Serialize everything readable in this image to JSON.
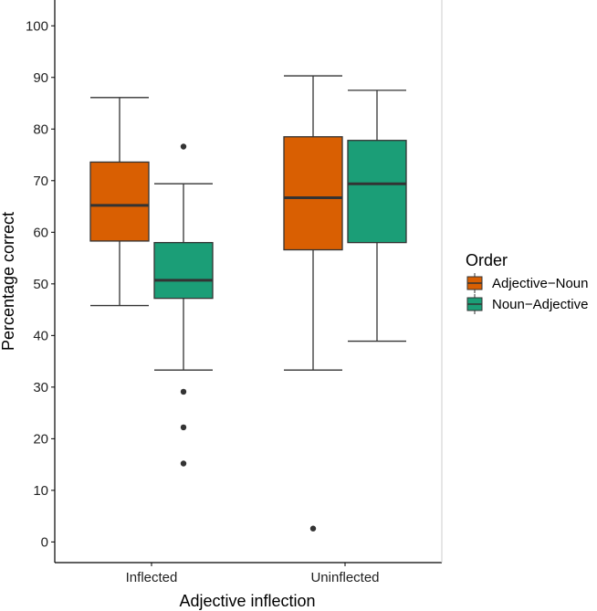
{
  "chart_data": {
    "type": "boxplot",
    "title": "",
    "xlabel": "Adjective inflection",
    "ylabel": "Percentage correct",
    "ylim": [
      -4,
      105
    ],
    "yticks": [
      "0",
      "10",
      "20",
      "30",
      "40",
      "50",
      "60",
      "70",
      "80",
      "90",
      "100"
    ],
    "categories": [
      "Inflected",
      "Uninflected"
    ],
    "legend": {
      "title": "Order",
      "position": "right",
      "entries": [
        "Adjective−Noun",
        "Noun−Adjective"
      ]
    },
    "series": [
      {
        "name": "Adjective−Noun",
        "color": "#D95F02",
        "boxes": [
          {
            "category": "Inflected",
            "min": 45.8,
            "q1": 58.3,
            "median": 65.2,
            "q3": 73.6,
            "max": 86.1,
            "outliers": []
          },
          {
            "category": "Uninflected",
            "min": 33.3,
            "q1": 56.6,
            "median": 66.7,
            "q3": 78.5,
            "max": 90.3,
            "outliers": [
              2.6
            ]
          }
        ]
      },
      {
        "name": "Noun−Adjective",
        "color": "#1B9E77",
        "boxes": [
          {
            "category": "Inflected",
            "min": 33.3,
            "q1": 47.2,
            "median": 50.7,
            "q3": 58.0,
            "max": 69.4,
            "outliers": [
              76.6,
              29.1,
              22.2,
              15.2
            ]
          },
          {
            "category": "Uninflected",
            "min": 38.9,
            "q1": 58.0,
            "median": 69.4,
            "q3": 77.8,
            "max": 87.5,
            "outliers": []
          }
        ]
      }
    ]
  }
}
